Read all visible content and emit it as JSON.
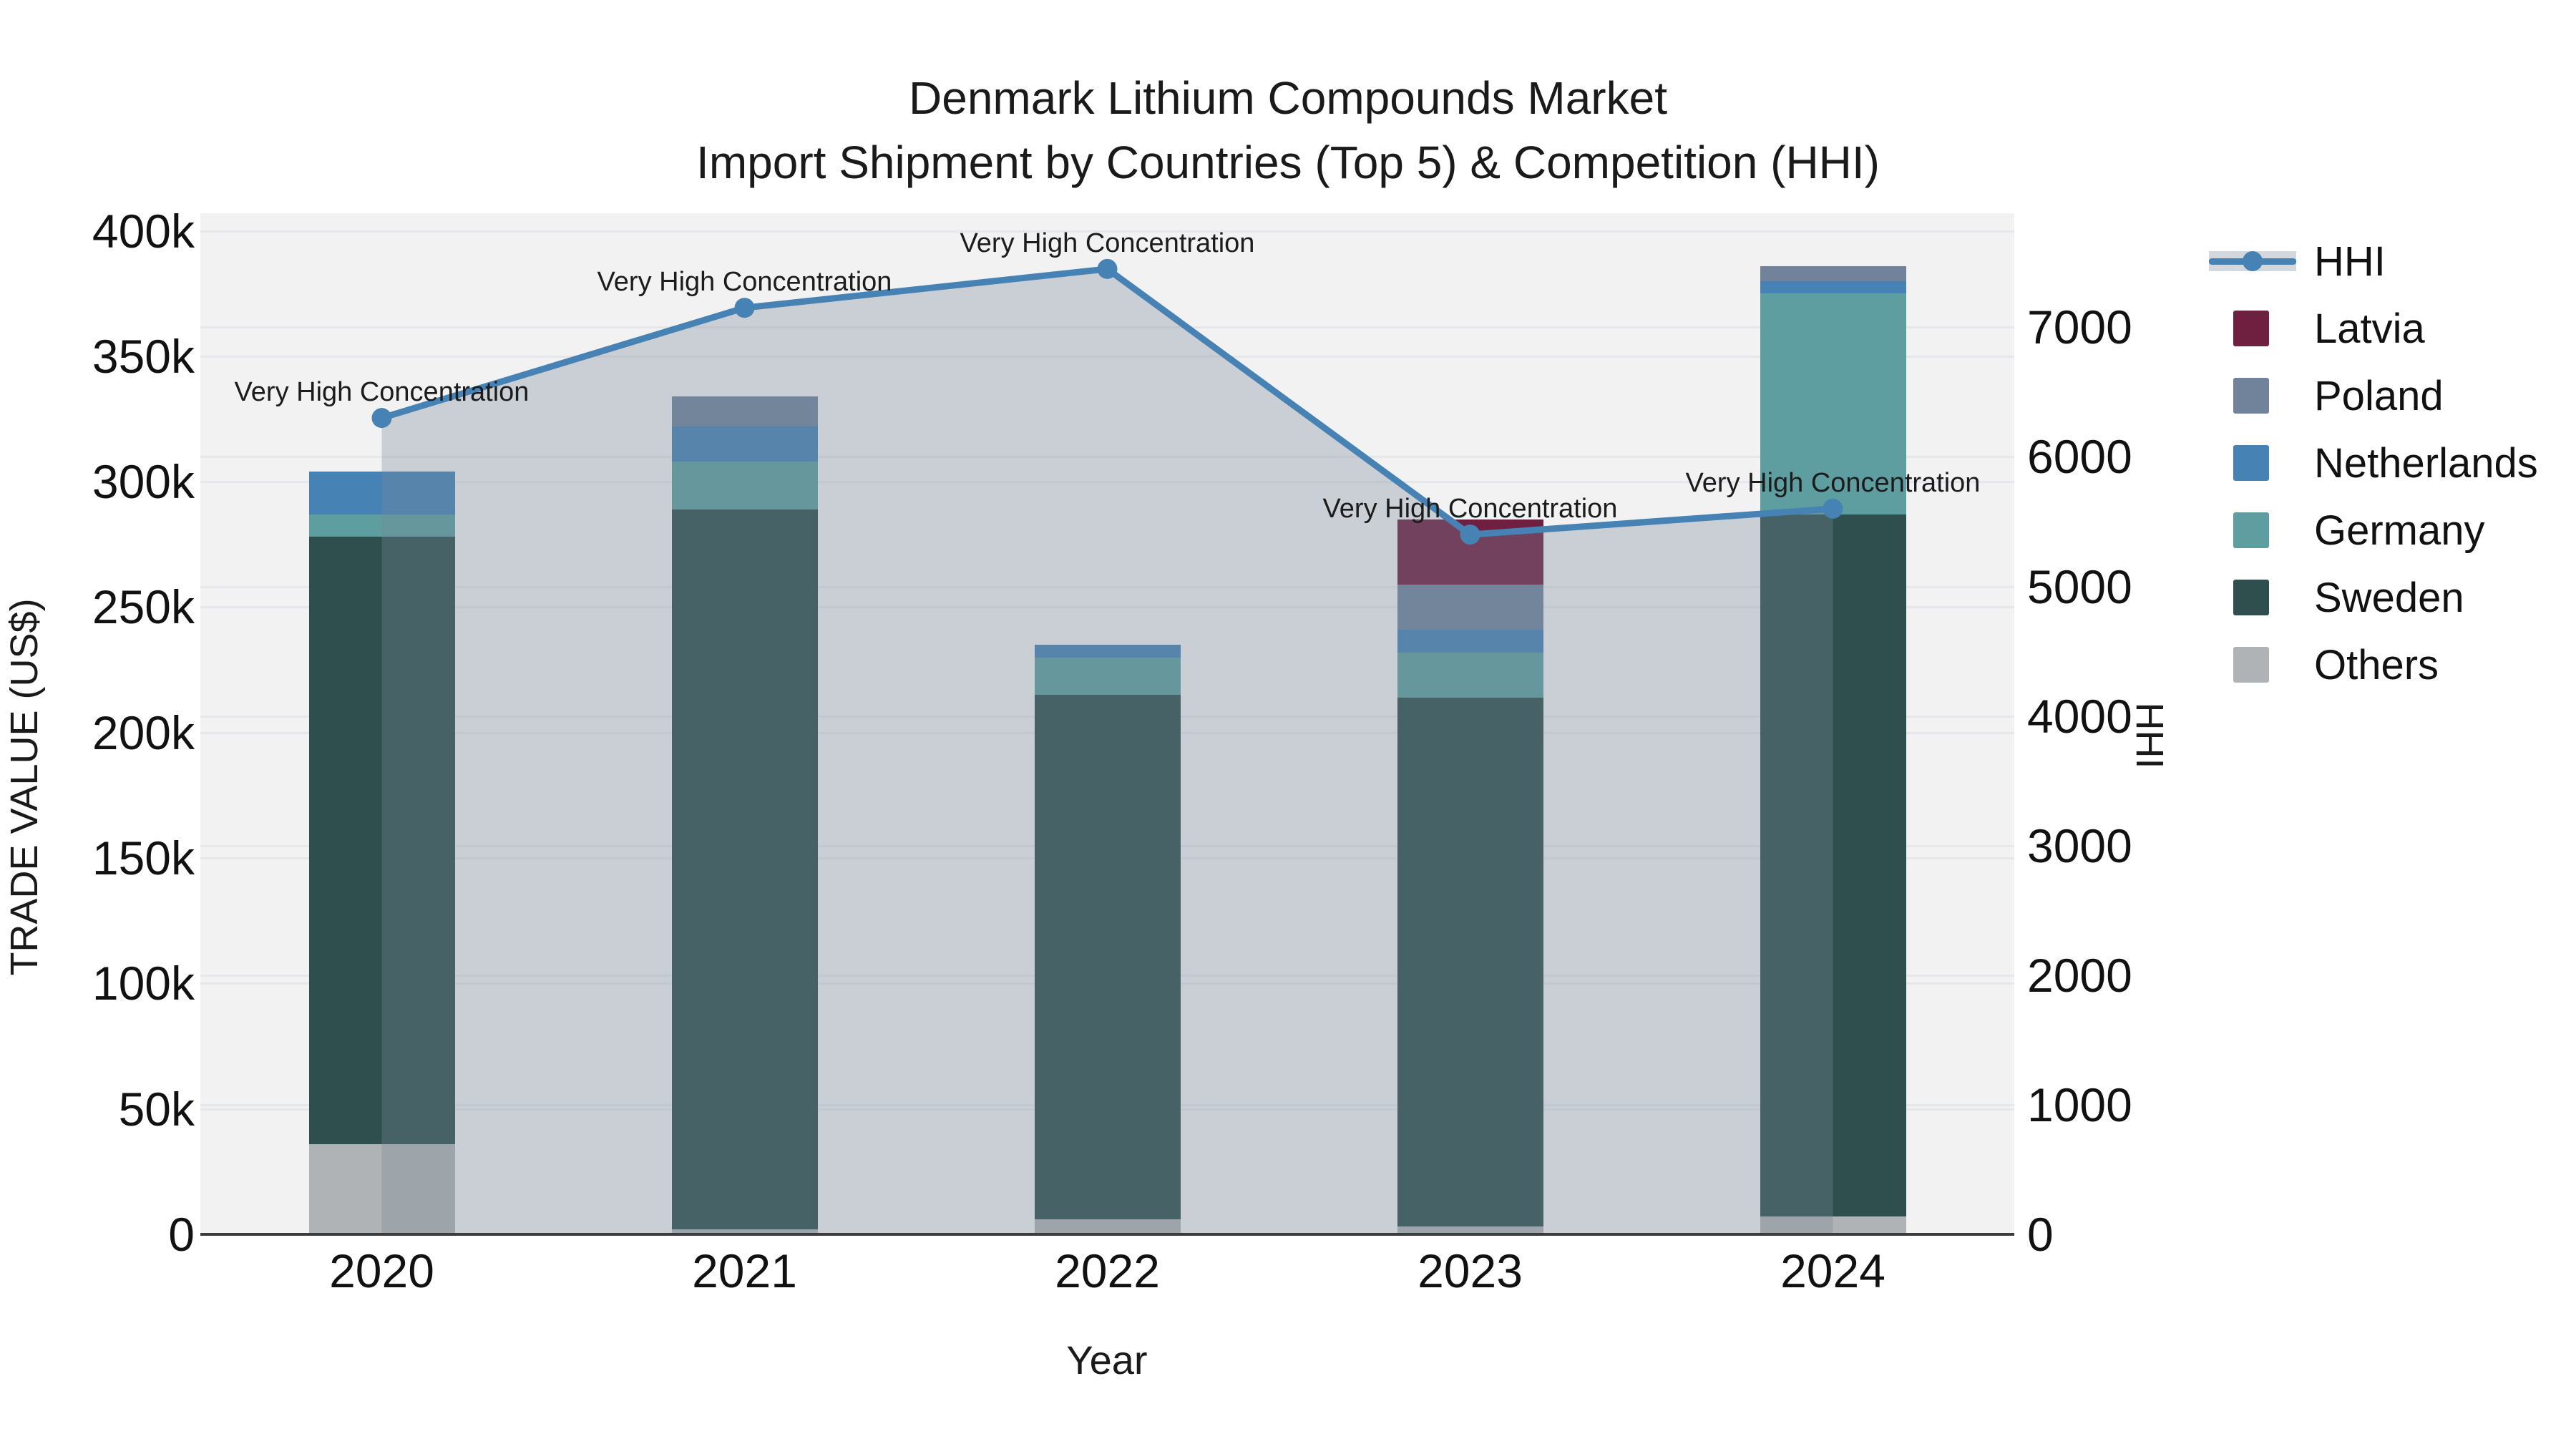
{
  "title": {
    "line1": "Denmark Lithium Compounds Market",
    "line2": "Import Shipment by Countries (Top 5) & Competition (HHI)"
  },
  "colors": {
    "plot_bg": "#f2f2f3",
    "grid": "#e6e7ea",
    "axis_line": "#3c3c3c",
    "hhi_line": "#4682b4",
    "hhi_fill": "rgba(119,136,153,0.33)"
  },
  "chart_data": {
    "type": "bar",
    "subtype": "stacked-bars-with-secondary-axis-line",
    "title": "Denmark Lithium Compounds Market — Import Shipment by Countries (Top 5) & Competition (HHI)",
    "categories": [
      "2020",
      "2021",
      "2022",
      "2023",
      "2024"
    ],
    "bar_series_stack_bottom_to_top": [
      {
        "name": "Others",
        "color": "#b0b3b5",
        "values": [
          36000,
          2000,
          6000,
          3000,
          7000
        ]
      },
      {
        "name": "Sweden",
        "color": "#2f4f4f",
        "values": [
          242000,
          287000,
          209000,
          211000,
          280000
        ]
      },
      {
        "name": "Germany",
        "color": "#5f9ea0",
        "values": [
          9000,
          19000,
          15000,
          18000,
          88000
        ]
      },
      {
        "name": "Netherlands",
        "color": "#4682b4",
        "values": [
          17000,
          14000,
          5000,
          9000,
          5000
        ]
      },
      {
        "name": "Poland",
        "color": "#71839b",
        "values": [
          0,
          12000,
          0,
          18000,
          6000
        ]
      },
      {
        "name": "Latvia",
        "color": "#6f1f40",
        "values": [
          0,
          0,
          0,
          26000,
          0
        ]
      }
    ],
    "bar_totals": [
      304000,
      334000,
      235000,
      285000,
      386000
    ],
    "line_series": {
      "name": "HHI",
      "axis": "right",
      "color": "#4682b4",
      "fill": "tozero",
      "fill_color": "rgba(119,136,153,0.33)",
      "values": [
        6300,
        7150,
        7450,
        5400,
        5600
      ]
    },
    "annotations": [
      {
        "category": "2020",
        "text": "Very High Concentration"
      },
      {
        "category": "2021",
        "text": "Very High Concentration"
      },
      {
        "category": "2022",
        "text": "Very High Concentration"
      },
      {
        "category": "2023",
        "text": "Very High Concentration"
      },
      {
        "category": "2024",
        "text": "Very High Concentration"
      }
    ],
    "axes": {
      "x": {
        "title": "Year"
      },
      "left": {
        "title": "TRADE VALUE (US$)",
        "tick_labels": [
          "0",
          "50k",
          "100k",
          "150k",
          "200k",
          "250k",
          "300k",
          "350k",
          "400k"
        ],
        "tick_values": [
          0,
          50000,
          100000,
          150000,
          200000,
          250000,
          300000,
          350000,
          400000
        ],
        "range": [
          0,
          407000
        ],
        "grid": true
      },
      "right": {
        "title": "HHI",
        "tick_labels": [
          "0",
          "1000",
          "2000",
          "3000",
          "4000",
          "5000",
          "6000",
          "7000"
        ],
        "tick_values": [
          0,
          1000,
          2000,
          3000,
          4000,
          5000,
          6000,
          7000
        ],
        "range": [
          0,
          7880
        ],
        "grid": true
      }
    },
    "legend_position": "right",
    "legend": [
      {
        "label": "HHI",
        "swatch": "line",
        "color": "#4682b4",
        "band_color": "rgba(119,136,153,0.33)"
      },
      {
        "label": "Latvia",
        "swatch": "square",
        "color": "#6f1f40"
      },
      {
        "label": "Poland",
        "swatch": "square",
        "color": "#71839b"
      },
      {
        "label": "Netherlands",
        "swatch": "square",
        "color": "#4682b4"
      },
      {
        "label": "Germany",
        "swatch": "square",
        "color": "#5f9ea0"
      },
      {
        "label": "Sweden",
        "swatch": "square",
        "color": "#2f4f4f"
      },
      {
        "label": "Others",
        "swatch": "square",
        "color": "#b0b3b5"
      }
    ]
  }
}
